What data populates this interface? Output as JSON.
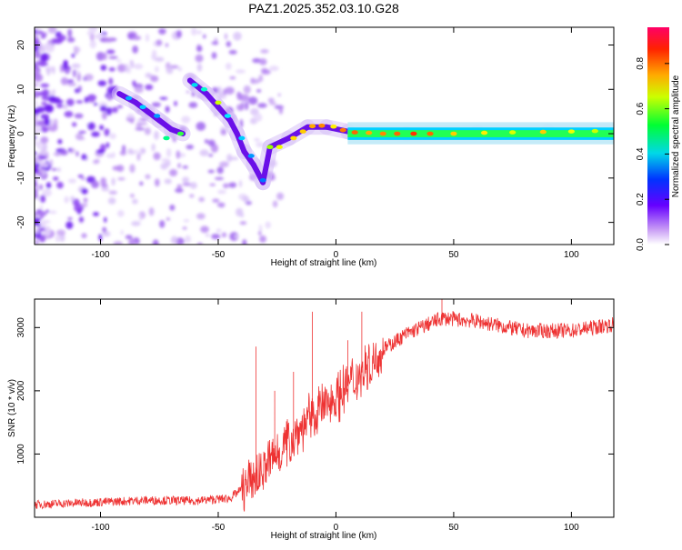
{
  "title": "PAZ1.2025.352.03.10.G28",
  "chart_data": [
    {
      "type": "heatmap",
      "xlabel": "Height of straight line (km)",
      "ylabel": "Frequency (Hz)",
      "xlim": [
        -128,
        118
      ],
      "ylim": [
        -25,
        24
      ],
      "xticks": [
        -100,
        -50,
        0,
        50,
        100
      ],
      "yticks": [
        -20,
        -10,
        0,
        10,
        20
      ],
      "xtick_labels": [
        "-100",
        "-50",
        "0",
        "50",
        "100"
      ],
      "ytick_labels": [
        "-20",
        "-10",
        "0",
        "10",
        "20"
      ],
      "ridge": [
        {
          "x": -92,
          "y": 9
        },
        {
          "x": -85,
          "y": 7
        },
        {
          "x": -80,
          "y": 5
        },
        {
          "x": -75,
          "y": 3
        },
        {
          "x": -70,
          "y": 1
        },
        {
          "x": -65,
          "y": 0
        },
        {
          "x": -62,
          "y": 12
        },
        {
          "x": -55,
          "y": 9
        },
        {
          "x": -50,
          "y": 6
        },
        {
          "x": -45,
          "y": 3
        },
        {
          "x": -42,
          "y": 0
        },
        {
          "x": -39,
          "y": -4
        },
        {
          "x": -35,
          "y": -7
        },
        {
          "x": -31,
          "y": -11
        },
        {
          "x": -28,
          "y": -3
        },
        {
          "x": -20,
          "y": -1
        },
        {
          "x": -12,
          "y": 1.5
        },
        {
          "x": -4,
          "y": 1.5
        },
        {
          "x": 5,
          "y": 0.5
        },
        {
          "x": 30,
          "y": 0
        },
        {
          "x": 60,
          "y": 0.3
        },
        {
          "x": 90,
          "y": 0.5
        },
        {
          "x": 118,
          "y": 0.5
        }
      ],
      "colorbar": {
        "label": "Normalized spectral amplitude",
        "range": [
          0,
          0.96
        ],
        "ticks": [
          "0.0",
          "0.2",
          "0.4",
          "0.6",
          "0.8"
        ],
        "tick_values": [
          0,
          0.2,
          0.4,
          0.6,
          0.8
        ]
      }
    },
    {
      "type": "line",
      "xlabel": "Height of straight line (km)",
      "ylabel": "SNR (10 * v/v)",
      "xlim": [
        -128,
        118
      ],
      "ylim": [
        0,
        3450
      ],
      "xticks": [
        -100,
        -50,
        0,
        50,
        100
      ],
      "yticks": [
        1000,
        2000,
        3000
      ],
      "xtick_labels": [
        "-100",
        "-50",
        "0",
        "50",
        "100"
      ],
      "ytick_labels": [
        "1000",
        "2000",
        "3000"
      ],
      "color": "#ee3333",
      "trend": [
        {
          "x": -128,
          "y": 200
        },
        {
          "x": -100,
          "y": 240
        },
        {
          "x": -80,
          "y": 270
        },
        {
          "x": -60,
          "y": 260
        },
        {
          "x": -45,
          "y": 300
        },
        {
          "x": -38,
          "y": 500
        },
        {
          "x": -30,
          "y": 800
        },
        {
          "x": -20,
          "y": 1200
        },
        {
          "x": -10,
          "y": 1600
        },
        {
          "x": 0,
          "y": 1900
        },
        {
          "x": 10,
          "y": 2250
        },
        {
          "x": 20,
          "y": 2650
        },
        {
          "x": 30,
          "y": 2900
        },
        {
          "x": 45,
          "y": 3150
        },
        {
          "x": 60,
          "y": 3100
        },
        {
          "x": 80,
          "y": 2950
        },
        {
          "x": 100,
          "y": 2950
        },
        {
          "x": 118,
          "y": 3050
        }
      ],
      "spikes": [
        {
          "x": -34,
          "y": 2700
        },
        {
          "x": -26,
          "y": 2000
        },
        {
          "x": -18,
          "y": 2300
        },
        {
          "x": -10,
          "y": 3250
        },
        {
          "x": 5,
          "y": 2800
        },
        {
          "x": 11,
          "y": 3250
        },
        {
          "x": 45,
          "y": 3450
        }
      ]
    }
  ]
}
